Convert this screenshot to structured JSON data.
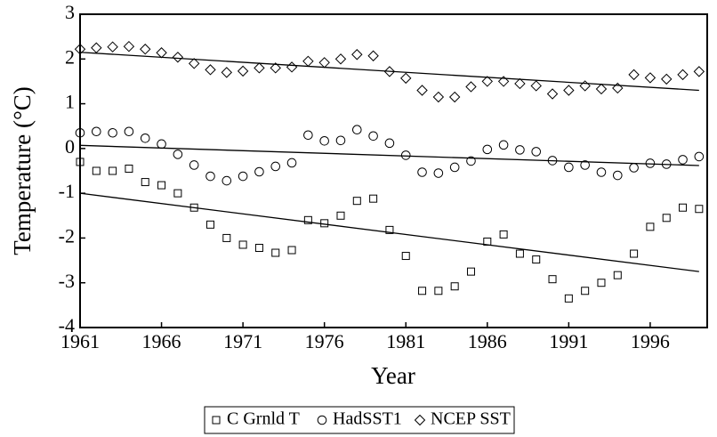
{
  "chart_data": {
    "type": "scatter",
    "x_label": "Year",
    "y_label": "Temperature (°C)",
    "x": [
      1961,
      1962,
      1963,
      1964,
      1965,
      1966,
      1967,
      1968,
      1969,
      1970,
      1971,
      1972,
      1973,
      1974,
      1975,
      1976,
      1977,
      1978,
      1979,
      1980,
      1981,
      1982,
      1983,
      1984,
      1985,
      1986,
      1987,
      1988,
      1989,
      1990,
      1991,
      1992,
      1993,
      1994,
      1995,
      1996,
      1997,
      1998,
      1999
    ],
    "series": [
      {
        "name": "C Grnld T",
        "marker": "square",
        "color": "#000000",
        "values": [
          -0.3,
          -0.5,
          -0.5,
          -0.45,
          -0.75,
          -0.82,
          -1.0,
          -1.32,
          -1.7,
          -2.0,
          -2.15,
          -2.22,
          -2.33,
          -2.27,
          -1.6,
          -1.67,
          -1.5,
          -1.17,
          -1.12,
          -1.82,
          -2.4,
          -3.18,
          -3.18,
          -3.08,
          -2.75,
          -2.08,
          -1.92,
          -2.35,
          -2.48,
          -2.92,
          -3.35,
          -3.18,
          -3.0,
          -2.83,
          -2.35,
          -1.75,
          -1.55,
          -1.32,
          -1.35
        ],
        "trend": {
          "x": [
            1961,
            1999
          ],
          "values": [
            -1.0,
            -2.75
          ]
        }
      },
      {
        "name": "HadSST1",
        "marker": "circle",
        "color": "#000000",
        "values": [
          0.35,
          0.38,
          0.35,
          0.38,
          0.23,
          0.1,
          -0.13,
          -0.37,
          -0.62,
          -0.72,
          -0.62,
          -0.52,
          -0.4,
          -0.32,
          0.3,
          0.17,
          0.18,
          0.42,
          0.28,
          0.12,
          -0.15,
          -0.53,
          -0.55,
          -0.42,
          -0.28,
          -0.02,
          0.08,
          -0.03,
          -0.07,
          -0.27,
          -0.42,
          -0.37,
          -0.53,
          -0.6,
          -0.43,
          -0.33,
          -0.35,
          -0.25,
          -0.18
        ],
        "trend": {
          "x": [
            1961,
            1999
          ],
          "values": [
            0.07,
            -0.38
          ]
        }
      },
      {
        "name": "NCEP SST",
        "marker": "diamond",
        "color": "#000000",
        "values": [
          2.22,
          2.25,
          2.27,
          2.28,
          2.22,
          2.14,
          2.04,
          1.9,
          1.76,
          1.7,
          1.73,
          1.8,
          1.8,
          1.82,
          1.95,
          1.92,
          2.0,
          2.1,
          2.07,
          1.72,
          1.57,
          1.3,
          1.15,
          1.15,
          1.38,
          1.5,
          1.5,
          1.45,
          1.4,
          1.22,
          1.3,
          1.4,
          1.33,
          1.35,
          1.65,
          1.58,
          1.55,
          1.65,
          1.72
        ],
        "trend": {
          "x": [
            1961,
            1999
          ],
          "values": [
            2.15,
            1.3
          ]
        }
      }
    ],
    "xlim": [
      1961,
      1999.5
    ],
    "xticks": [
      1961,
      1966,
      1971,
      1976,
      1981,
      1986,
      1991,
      1996
    ],
    "ylim": [
      -4,
      3
    ],
    "yticks": [
      -4,
      -3,
      -2,
      -1,
      0,
      1,
      2,
      3
    ],
    "legend": "bottom"
  }
}
